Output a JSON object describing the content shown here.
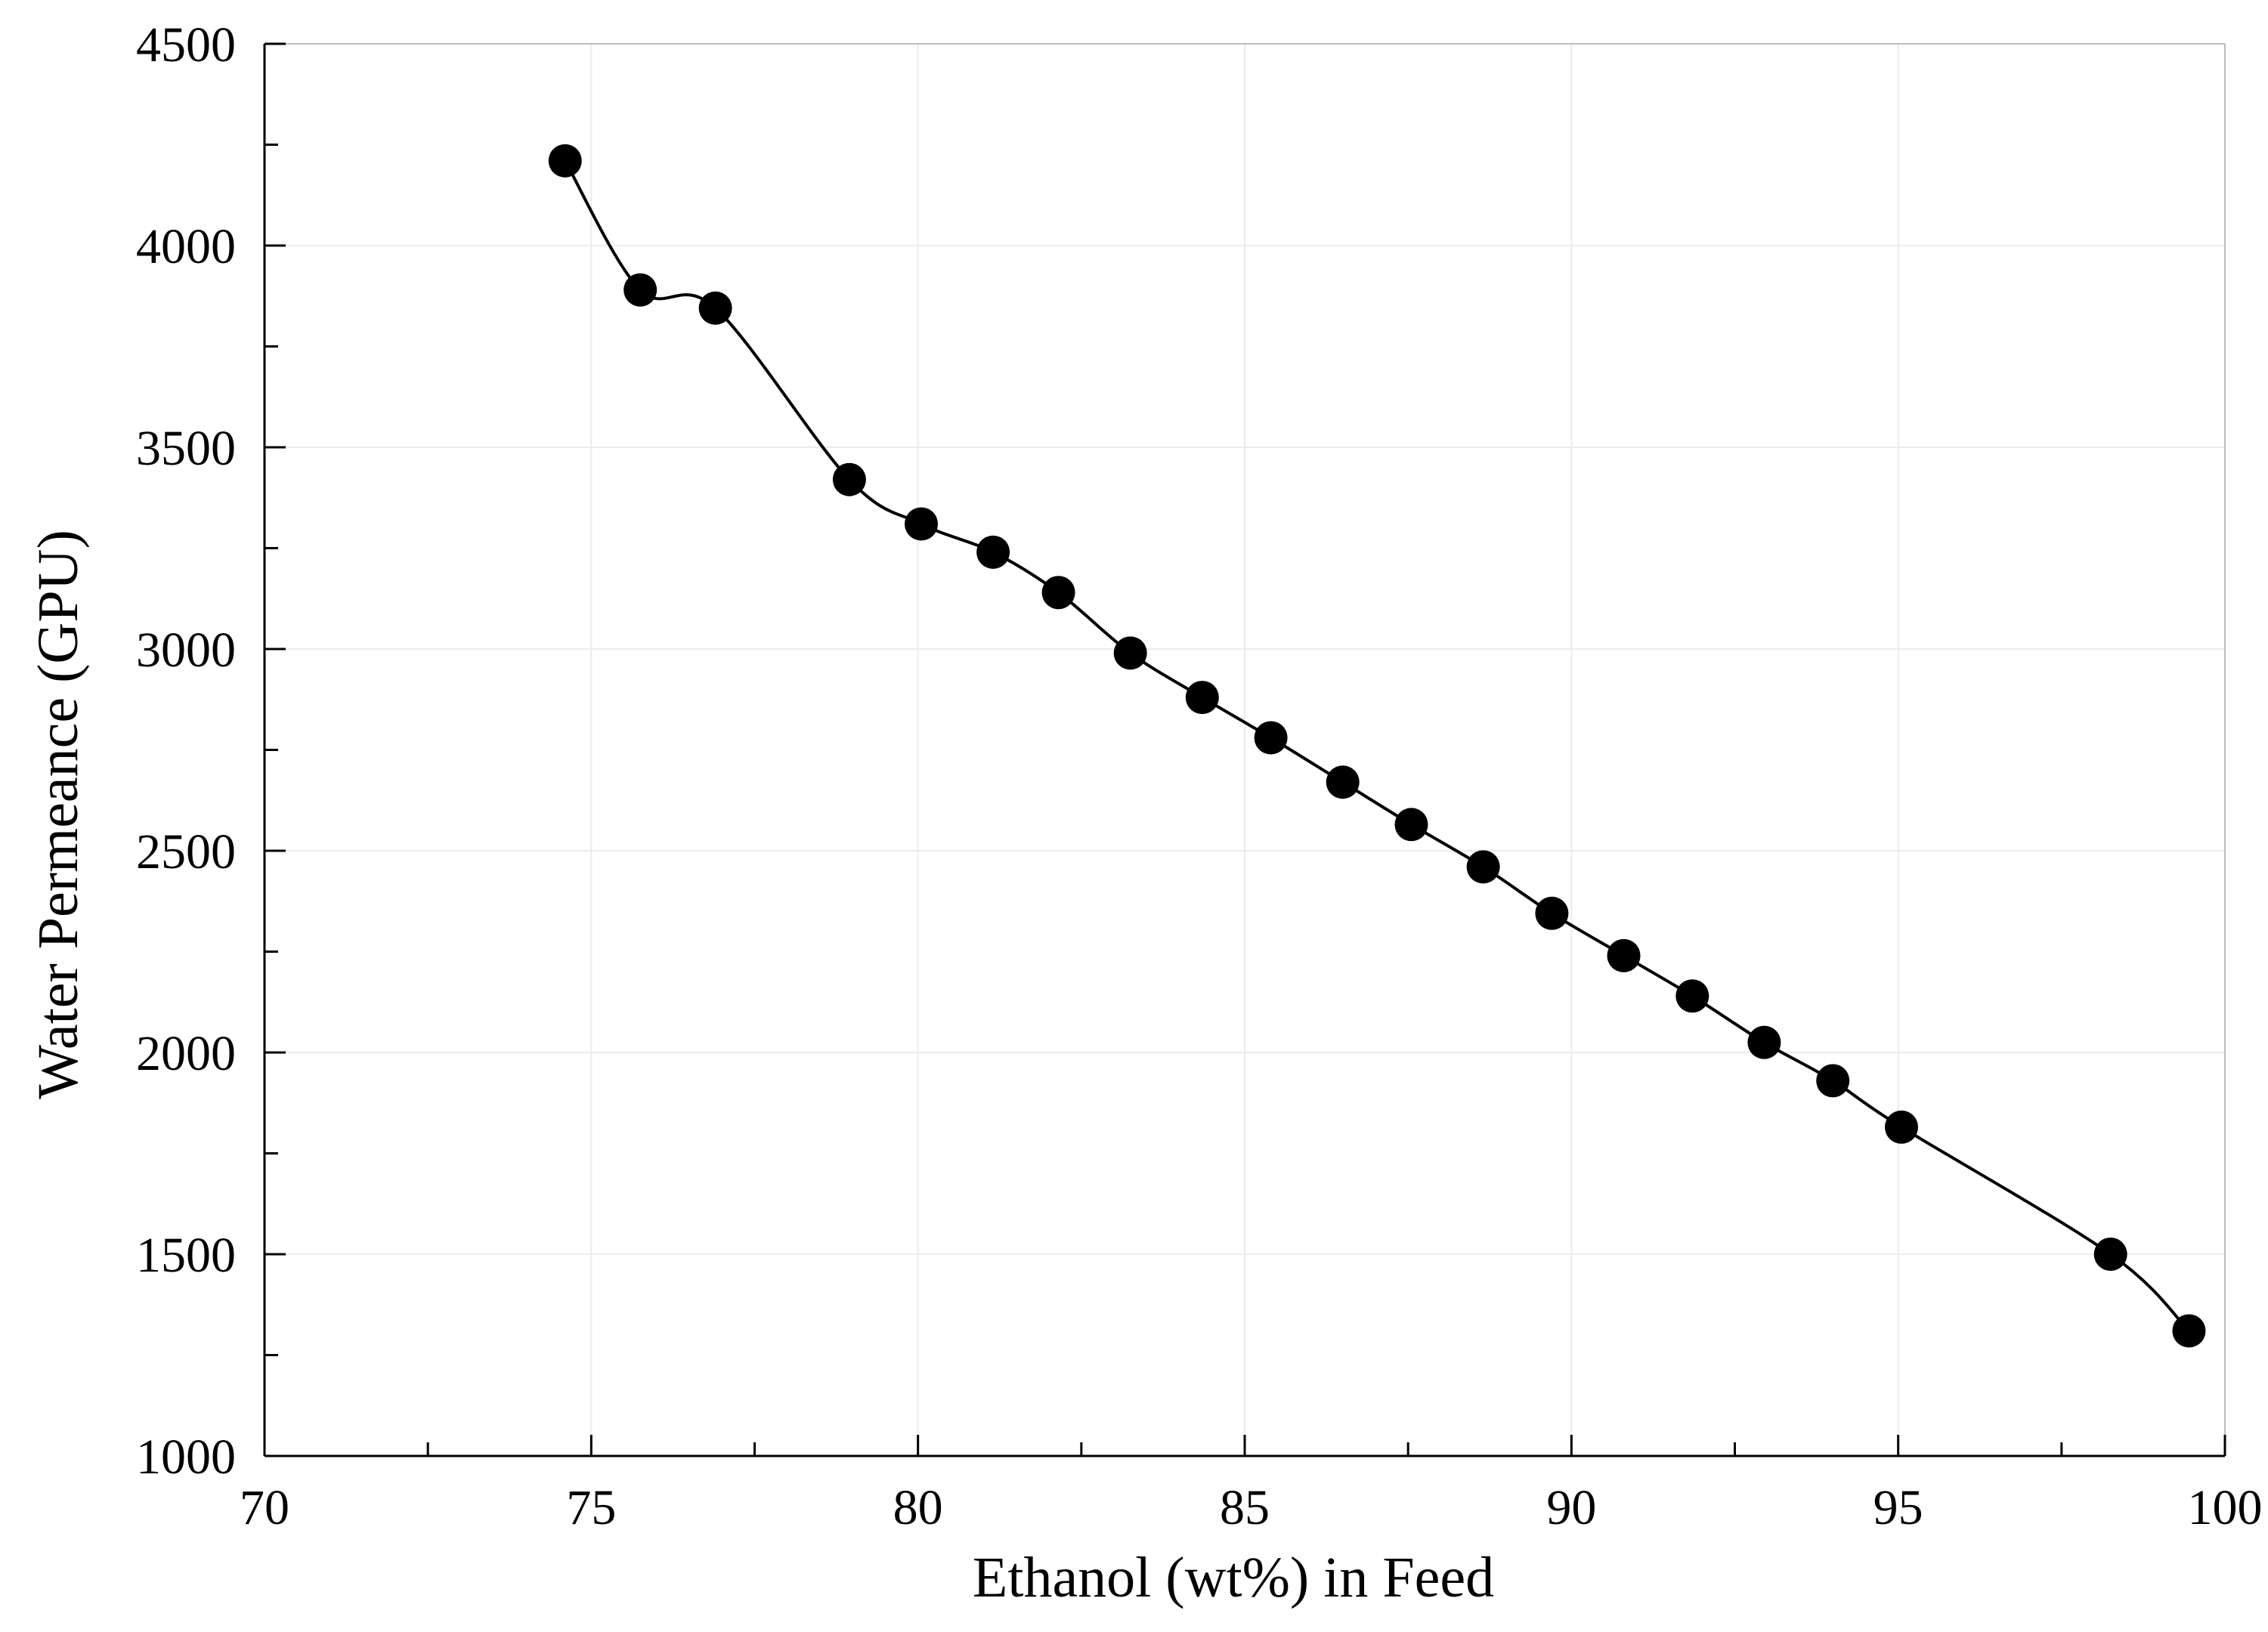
{
  "chart_data": {
    "type": "scatter",
    "title": "",
    "xlabel": "Ethanol (wt%) in Feed",
    "ylabel": "Water Permeance (GPU)",
    "xlim": [
      70,
      100
    ],
    "ylim": [
      1000,
      4500
    ],
    "x_ticks": [
      70,
      75,
      80,
      85,
      90,
      95,
      100
    ],
    "y_ticks": [
      1000,
      1500,
      2000,
      2500,
      3000,
      3500,
      4000,
      4500
    ],
    "x_minor_step": 2.5,
    "y_minor_step": 250,
    "grid": true,
    "legend": "none",
    "marker": "filled-circle",
    "connector": "smooth-line",
    "colors": {
      "series": "#000000",
      "grid": "#ececec",
      "axis": "#000000",
      "background": "#ffffff"
    },
    "series": [
      {
        "x": [
          74.6,
          75.75,
          76.9,
          78.95,
          80.05,
          81.15,
          82.15,
          83.25,
          84.35,
          85.4,
          86.5,
          87.55,
          88.65,
          89.7,
          90.8,
          91.85,
          92.95,
          94.0,
          95.05,
          98.25,
          99.45
        ],
        "y": [
          4210,
          3890,
          3845,
          3420,
          3310,
          3240,
          3140,
          2990,
          2880,
          2780,
          2670,
          2565,
          2460,
          2345,
          2240,
          2140,
          2025,
          1930,
          1815,
          1500,
          1310
        ]
      }
    ]
  }
}
